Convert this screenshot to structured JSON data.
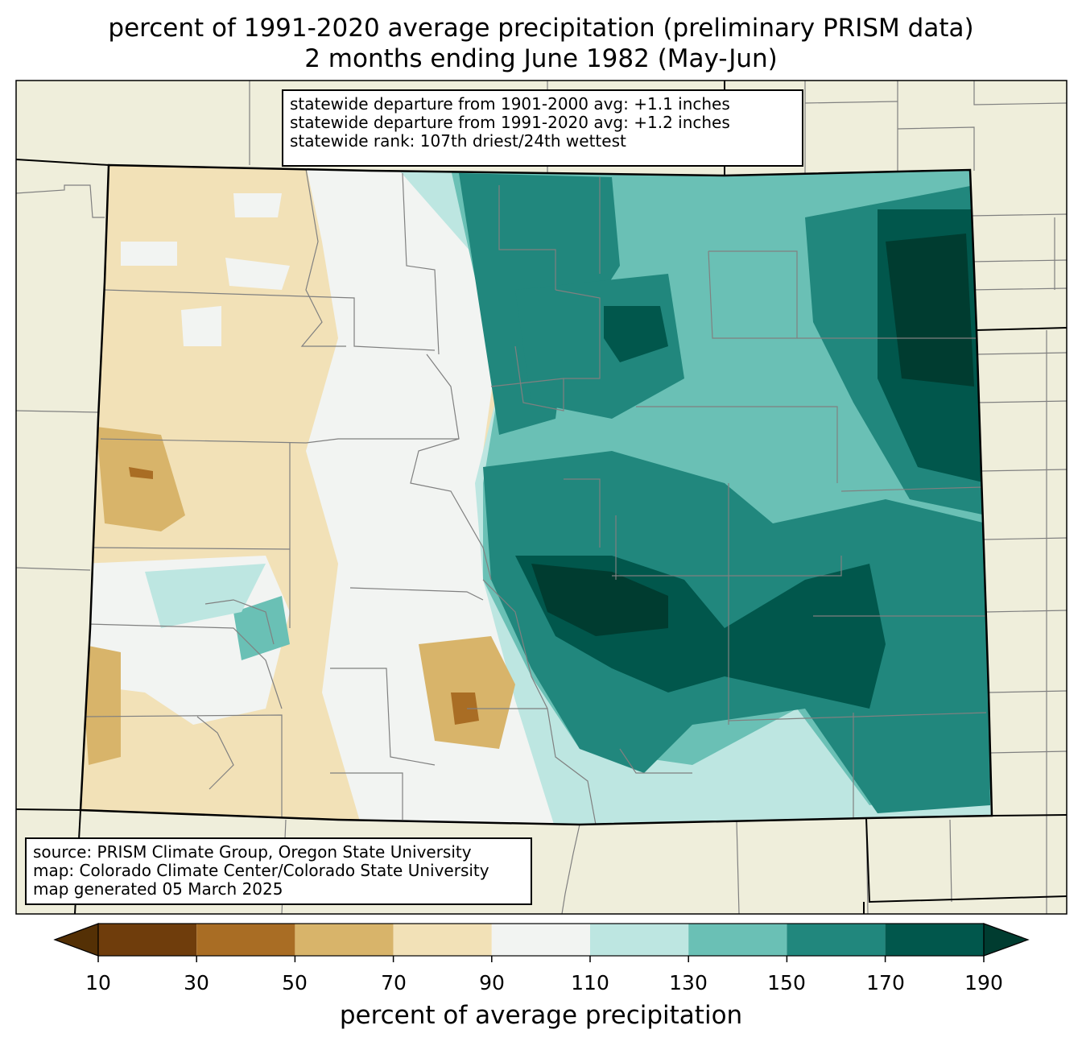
{
  "title": {
    "line1": "percent of 1991-2020 average precipitation (preliminary PRISM data)",
    "line2": "2 months ending June 1982 (May-Jun)"
  },
  "stats": {
    "line1": "statewide departure from 1901-2000 avg: +1.1 inches",
    "line2": "statewide departure from 1991-2020 avg: +1.2 inches",
    "line3": "statewide rank: 107th driest/24th wettest"
  },
  "source": {
    "line1": "source: PRISM Climate Group, Oregon State University",
    "line2": "map: Colorado Climate Center/Colorado State University",
    "line3": "map generated 05 March 2025"
  },
  "colorbar": {
    "label": "percent of average precipitation",
    "ticks": [
      "10",
      "30",
      "50",
      "70",
      "90",
      "110",
      "130",
      "150",
      "170",
      "190"
    ],
    "colors": {
      "under": "#543005",
      "10-30": "#6f3d0c",
      "30-50": "#a96d24",
      "50-70": "#d8b46a",
      "70-90": "#f2e1b7",
      "90-110": "#f2f4f2",
      "110-130": "#bde6e1",
      "130-150": "#6ac0b5",
      "150-170": "#21877d",
      "170-190": "#01574c",
      "over": "#003c30"
    }
  },
  "map_colors": {
    "background_land": "#efeedb",
    "county_lines": "#808080",
    "state_lines": "#000000"
  }
}
